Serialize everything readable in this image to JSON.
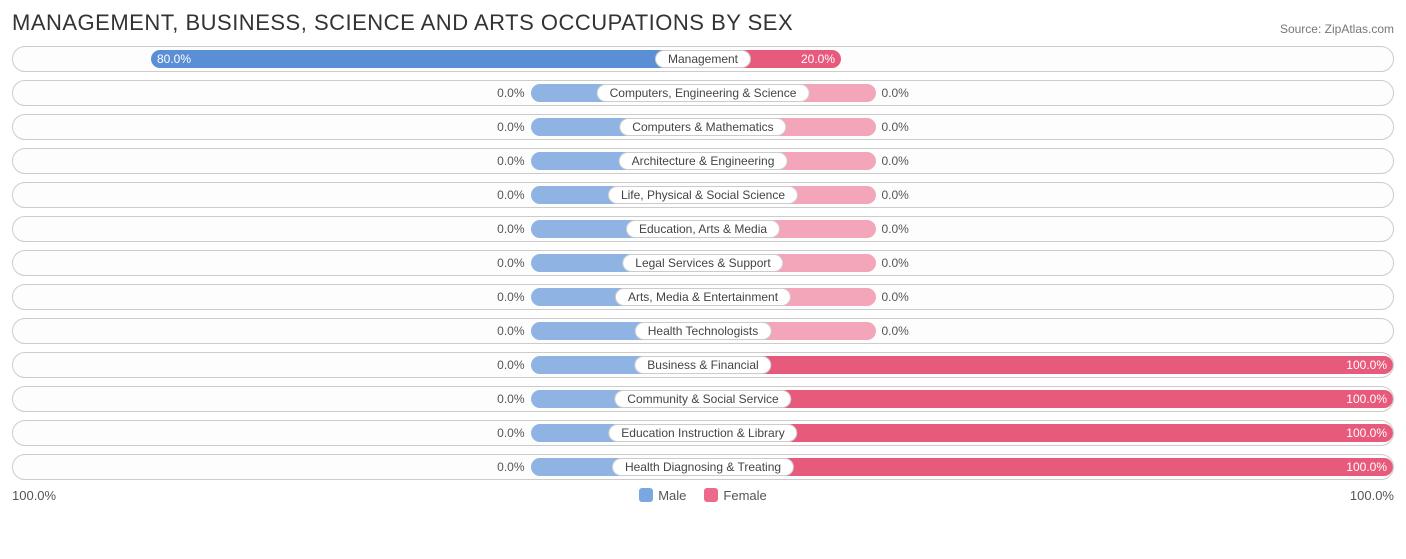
{
  "title": "MANAGEMENT, BUSINESS, SCIENCE AND ARTS OCCUPATIONS BY SEX",
  "source": "Source: ZipAtlas.com",
  "axis": {
    "left": "100.0%",
    "right": "100.0%"
  },
  "legend": {
    "male": {
      "label": "Male",
      "color": "#7ba7e0"
    },
    "female": {
      "label": "Female",
      "color": "#ec6b8b"
    }
  },
  "colors": {
    "male_base": "#8fb4e3",
    "male_strong": "#5a8fd6",
    "female_base": "#f3a6ba",
    "female_strong": "#e75a7c",
    "track_border": "#cccccc",
    "pill_border": "#cccccc",
    "text": "#555555"
  },
  "default_bar_width_pct": 25,
  "rows": [
    {
      "category": "Management",
      "male": 80.0,
      "female": 20.0
    },
    {
      "category": "Computers, Engineering & Science",
      "male": 0.0,
      "female": 0.0
    },
    {
      "category": "Computers & Mathematics",
      "male": 0.0,
      "female": 0.0
    },
    {
      "category": "Architecture & Engineering",
      "male": 0.0,
      "female": 0.0
    },
    {
      "category": "Life, Physical & Social Science",
      "male": 0.0,
      "female": 0.0
    },
    {
      "category": "Education, Arts & Media",
      "male": 0.0,
      "female": 0.0
    },
    {
      "category": "Legal Services & Support",
      "male": 0.0,
      "female": 0.0
    },
    {
      "category": "Arts, Media & Entertainment",
      "male": 0.0,
      "female": 0.0
    },
    {
      "category": "Health Technologists",
      "male": 0.0,
      "female": 0.0
    },
    {
      "category": "Business & Financial",
      "male": 0.0,
      "female": 100.0
    },
    {
      "category": "Community & Social Service",
      "male": 0.0,
      "female": 100.0
    },
    {
      "category": "Education Instruction & Library",
      "male": 0.0,
      "female": 100.0
    },
    {
      "category": "Health Diagnosing & Treating",
      "male": 0.0,
      "female": 100.0
    }
  ]
}
